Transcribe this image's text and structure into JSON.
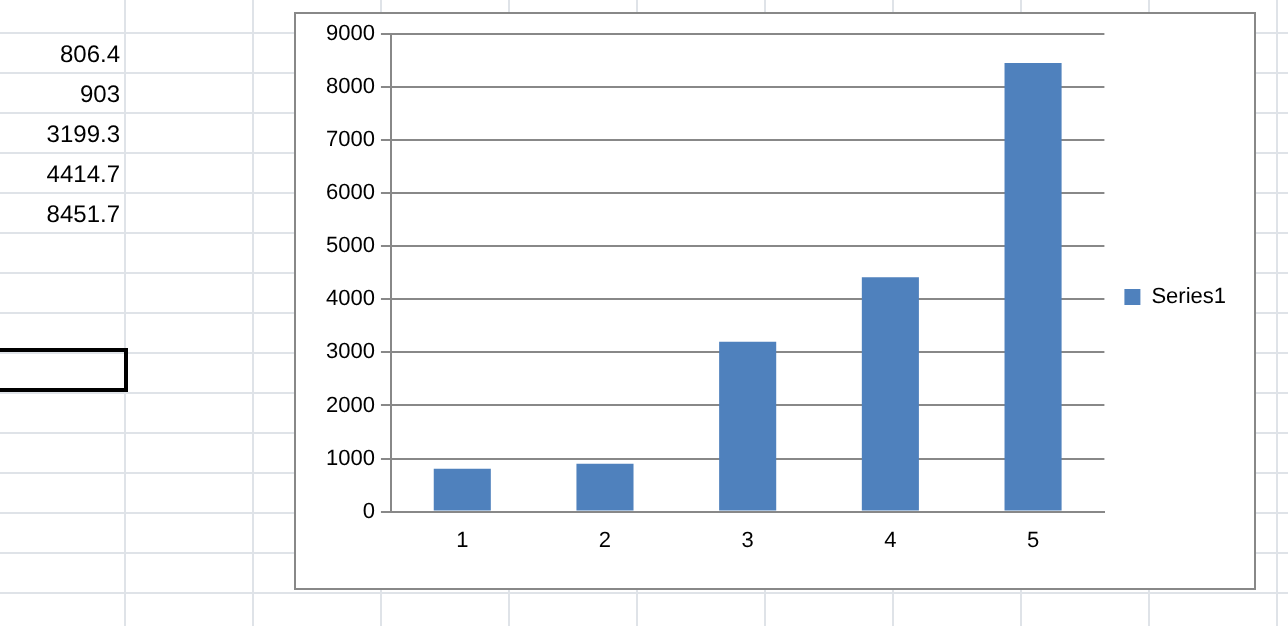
{
  "chart_data": {
    "type": "bar",
    "categories": [
      "1",
      "2",
      "3",
      "4",
      "5"
    ],
    "series": [
      {
        "name": "Series1",
        "color": "#4f81bd",
        "values": [
          806.4,
          903,
          3199.3,
          4414.7,
          8451.7
        ]
      }
    ],
    "ylim": [
      0,
      9000
    ],
    "yticks": [
      0,
      1000,
      2000,
      3000,
      4000,
      5000,
      6000,
      7000,
      8000,
      9000
    ],
    "grid": "y",
    "legend": "right",
    "annotations": [
      "806.4",
      "903",
      "3199.3",
      "4414.7",
      "8451.7"
    ]
  }
}
